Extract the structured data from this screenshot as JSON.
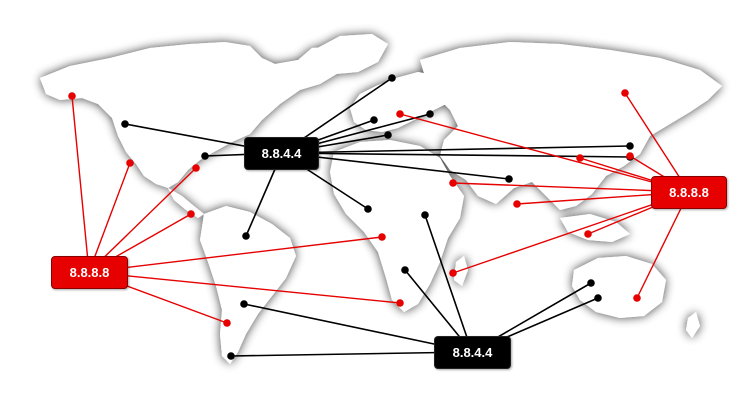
{
  "servers": {
    "black_north": {
      "label": "8.8.4.4",
      "color": "#000000"
    },
    "black_south": {
      "label": "8.8.4.4",
      "color": "#000000"
    },
    "red_west": {
      "label": "8.8.8.8",
      "color": "#e60000"
    },
    "red_east": {
      "label": "8.8.8.8",
      "color": "#e60000"
    }
  },
  "colors": {
    "map_land": "#ffffff",
    "map_shadow": "#9a9a9a",
    "black_link": "#000000",
    "red_link": "#e60000"
  }
}
